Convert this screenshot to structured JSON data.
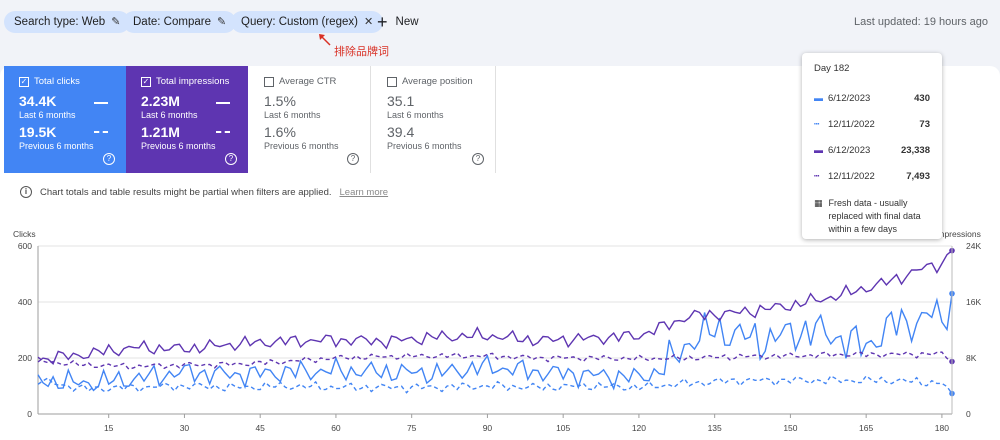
{
  "filters": {
    "search_type": "Search type: Web",
    "date": "Date: Compare",
    "query": "Query: Custom (regex)",
    "new_label": "New",
    "last_updated": "Last updated: 19 hours ago"
  },
  "annotation": "排除品牌词",
  "metrics": {
    "clicks": {
      "label": "Total clicks",
      "value_current": "34.4K",
      "period_current": "Last 6 months",
      "value_previous": "19.5K",
      "period_previous": "Previous 6 months",
      "checked": true,
      "color": "#4285f4"
    },
    "impressions": {
      "label": "Total impressions",
      "value_current": "2.23M",
      "period_current": "Last 6 months",
      "value_previous": "1.21M",
      "period_previous": "Previous 6 months",
      "checked": true,
      "color": "#5e35b1"
    },
    "ctr": {
      "label": "Average CTR",
      "value_current": "1.5%",
      "period_current": "Last 6 months",
      "value_previous": "1.6%",
      "period_previous": "Previous 6 months",
      "checked": false
    },
    "position": {
      "label": "Average position",
      "value_current": "35.1",
      "period_current": "Last 6 months",
      "value_previous": "39.4",
      "period_previous": "Previous 6 months",
      "checked": false
    }
  },
  "info_text": "Chart totals and table results might be partial when filters are applied.",
  "learn_more": "Learn more",
  "tooltip": {
    "title": "Day 182",
    "rows": [
      {
        "date": "6/12/2023",
        "value": "430",
        "style": "solid",
        "color": "#4285f4"
      },
      {
        "date": "12/11/2022",
        "value": "73",
        "style": "dashed",
        "color": "#4285f4"
      },
      {
        "date": "6/12/2023",
        "value": "23,338",
        "style": "solid",
        "color": "#5e35b1"
      },
      {
        "date": "12/11/2022",
        "value": "7,493",
        "style": "dashed",
        "color": "#5e35b1"
      }
    ],
    "note": "Fresh data - usually replaced with final data within a few days"
  },
  "chart_data": {
    "type": "line",
    "xlabel": "",
    "ylabel_left": "Clicks",
    "ylabel_right": "Impressions",
    "x_ticks": [
      15,
      30,
      45,
      60,
      75,
      90,
      105,
      120,
      135,
      150,
      165,
      180
    ],
    "x_range": [
      1,
      182
    ],
    "ylim_left": [
      0,
      600
    ],
    "ylim_right": [
      0,
      24000
    ],
    "y_ticks_left": [
      0,
      200,
      400,
      600
    ],
    "y_ticks_right_labels": [
      "0",
      "8K",
      "16K",
      "24K"
    ],
    "y_ticks_right": [
      0,
      8000,
      16000,
      24000
    ],
    "series": [
      {
        "name": "Clicks – Last 6 months",
        "axis": "left",
        "style": "solid",
        "color": "#4285f4",
        "anchors": [
          [
            1,
            120
          ],
          [
            10,
            110
          ],
          [
            20,
            125
          ],
          [
            30,
            150
          ],
          [
            40,
            140
          ],
          [
            50,
            150
          ],
          [
            60,
            155
          ],
          [
            70,
            150
          ],
          [
            80,
            145
          ],
          [
            90,
            170
          ],
          [
            100,
            150
          ],
          [
            110,
            140
          ],
          [
            120,
            130
          ],
          [
            125,
            160
          ],
          [
            130,
            260
          ],
          [
            135,
            300
          ],
          [
            140,
            280
          ],
          [
            145,
            260
          ],
          [
            150,
            290
          ],
          [
            155,
            300
          ],
          [
            160,
            270
          ],
          [
            165,
            240
          ],
          [
            170,
            320
          ],
          [
            175,
            330
          ],
          [
            178,
            360
          ],
          [
            180,
            330
          ],
          [
            182,
            430
          ]
        ]
      },
      {
        "name": "Clicks – Previous 6 months",
        "axis": "left",
        "style": "dashed",
        "color": "#4285f4",
        "anchors": [
          [
            1,
            120
          ],
          [
            10,
            90
          ],
          [
            20,
            95
          ],
          [
            30,
            100
          ],
          [
            40,
            95
          ],
          [
            50,
            100
          ],
          [
            60,
            95
          ],
          [
            70,
            95
          ],
          [
            80,
            95
          ],
          [
            90,
            100
          ],
          [
            100,
            95
          ],
          [
            110,
            100
          ],
          [
            120,
            95
          ],
          [
            130,
            110
          ],
          [
            140,
            120
          ],
          [
            150,
            120
          ],
          [
            160,
            120
          ],
          [
            170,
            120
          ],
          [
            180,
            110
          ],
          [
            182,
            73
          ]
        ]
      },
      {
        "name": "Impressions – Last 6 months",
        "axis": "right",
        "style": "solid",
        "color": "#5e35b1",
        "anchors": [
          [
            1,
            7800
          ],
          [
            10,
            8500
          ],
          [
            20,
            9500
          ],
          [
            30,
            9300
          ],
          [
            40,
            10000
          ],
          [
            50,
            10400
          ],
          [
            60,
            10600
          ],
          [
            70,
            10400
          ],
          [
            80,
            11000
          ],
          [
            90,
            11200
          ],
          [
            100,
            10500
          ],
          [
            110,
            10800
          ],
          [
            120,
            11200
          ],
          [
            125,
            12500
          ],
          [
            130,
            14000
          ],
          [
            140,
            14500
          ],
          [
            150,
            15500
          ],
          [
            160,
            17000
          ],
          [
            170,
            19000
          ],
          [
            175,
            20500
          ],
          [
            180,
            21500
          ],
          [
            182,
            23338
          ]
        ]
      },
      {
        "name": "Impressions – Previous 6 months",
        "axis": "right",
        "style": "dashed",
        "color": "#5e35b1",
        "anchors": [
          [
            1,
            7600
          ],
          [
            10,
            7000
          ],
          [
            20,
            6800
          ],
          [
            30,
            7000
          ],
          [
            40,
            7100
          ],
          [
            50,
            7500
          ],
          [
            60,
            8000
          ],
          [
            70,
            8200
          ],
          [
            80,
            8300
          ],
          [
            90,
            8300
          ],
          [
            100,
            8000
          ],
          [
            110,
            8000
          ],
          [
            120,
            7900
          ],
          [
            130,
            8000
          ],
          [
            140,
            8200
          ],
          [
            150,
            8300
          ],
          [
            160,
            8500
          ],
          [
            170,
            8500
          ],
          [
            180,
            8600
          ],
          [
            182,
            7493
          ]
        ]
      }
    ]
  }
}
